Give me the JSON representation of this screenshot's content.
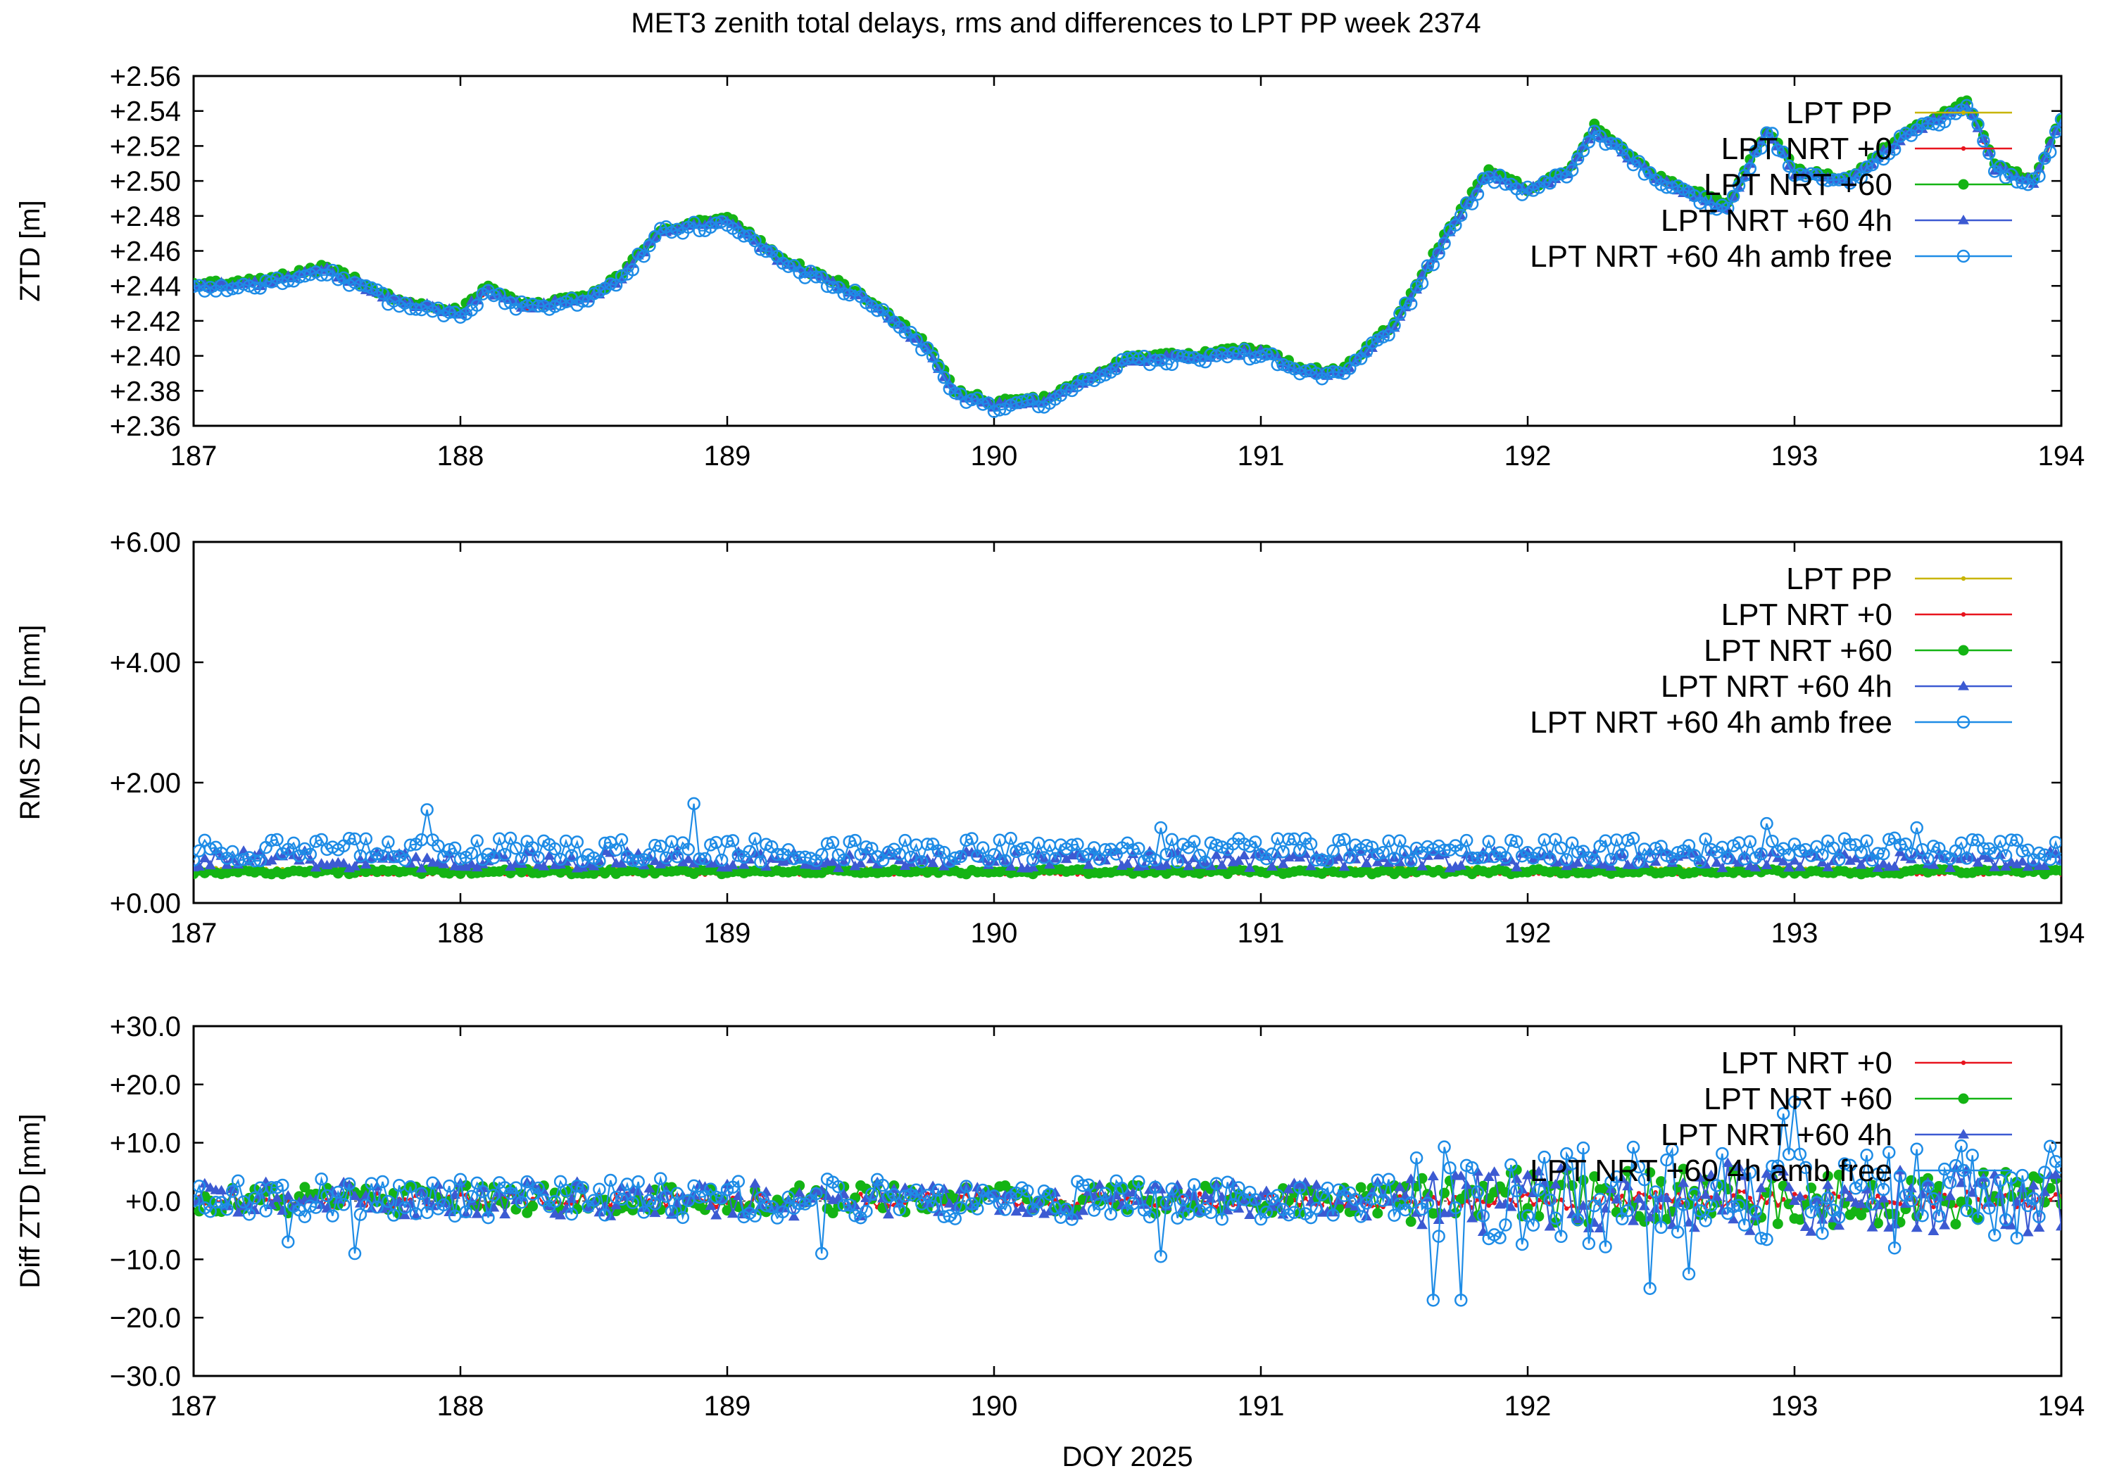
{
  "title": "MET3 zenith total delays, rms and differences to LPT PP week 2374",
  "colors": {
    "LPT PP": "#c8b400",
    "LPT NRT +0": "#e8141e",
    "LPT NRT +60": "#14b414",
    "LPT NRT +60 4h": "#3c5ad2",
    "LPT NRT +60 4h amb free": "#1e8ce6"
  },
  "chart_data": [
    {
      "type": "line",
      "panel": "ztd",
      "ylabel": "ZTD [m]",
      "xlabel": "",
      "xlim": [
        187,
        194
      ],
      "ylim": [
        2.36,
        2.56
      ],
      "xticks": [
        "187",
        "188",
        "189",
        "190",
        "191",
        "192",
        "193",
        "194"
      ],
      "yticks": [
        "+2.36",
        "+2.38",
        "+2.40",
        "+2.42",
        "+2.44",
        "+2.46",
        "+2.48",
        "+2.50",
        "+2.52",
        "+2.54",
        "+2.56"
      ],
      "legend": [
        "LPT PP",
        "LPT NRT +0",
        "LPT NRT +60",
        "LPT NRT +60 4h",
        "LPT NRT +60 4h amb free"
      ],
      "legend_position": "top-right",
      "base_curve": {
        "x": [
          187.0,
          187.25,
          187.5,
          187.75,
          188.0,
          188.1,
          188.25,
          188.5,
          188.6,
          188.75,
          189.0,
          189.2,
          189.5,
          189.75,
          189.85,
          190.0,
          190.2,
          190.5,
          190.75,
          191.0,
          191.15,
          191.3,
          191.5,
          191.7,
          191.85,
          192.0,
          192.15,
          192.25,
          192.5,
          192.75,
          192.9,
          193.0,
          193.2,
          193.4,
          193.65,
          193.75,
          193.9,
          194.0
        ],
        "y": [
          2.44,
          2.442,
          2.45,
          2.432,
          2.425,
          2.438,
          2.428,
          2.435,
          2.445,
          2.472,
          2.478,
          2.455,
          2.435,
          2.405,
          2.38,
          2.372,
          2.375,
          2.398,
          2.4,
          2.403,
          2.392,
          2.39,
          2.418,
          2.47,
          2.505,
          2.495,
          2.505,
          2.53,
          2.5,
          2.485,
          2.53,
          2.505,
          2.5,
          2.525,
          2.545,
          2.508,
          2.5,
          2.535
        ]
      },
      "series": [
        {
          "name": "LPT PP",
          "noise": 0.0012,
          "offset": 0.0
        },
        {
          "name": "LPT NRT +0",
          "noise": 0.0014,
          "offset": 0.0
        },
        {
          "name": "LPT NRT +60",
          "noise": 0.0018,
          "offset": 0.001
        },
        {
          "name": "LPT NRT +60 4h",
          "noise": 0.0018,
          "offset": -0.0005
        },
        {
          "name": "LPT NRT +60 4h amb free",
          "noise": 0.003,
          "offset": -0.0015
        }
      ]
    },
    {
      "type": "line",
      "panel": "rms",
      "ylabel": "RMS ZTD [mm]",
      "xlabel": "",
      "xlim": [
        187,
        194
      ],
      "ylim": [
        0,
        6
      ],
      "xticks": [
        "187",
        "188",
        "189",
        "190",
        "191",
        "192",
        "193",
        "194"
      ],
      "yticks": [
        "+0.00",
        "+2.00",
        "+4.00",
        "+6.00"
      ],
      "legend": [
        "LPT PP",
        "LPT NRT +0",
        "LPT NRT +60",
        "LPT NRT +60 4h",
        "LPT NRT +60 4h amb free"
      ],
      "legend_position": "top-right",
      "series": [
        {
          "name": "LPT PP",
          "mean": 0.55,
          "noise": 0.03
        },
        {
          "name": "LPT NRT +0",
          "mean": 0.5,
          "noise": 0.03
        },
        {
          "name": "LPT NRT +60",
          "mean": 0.52,
          "noise": 0.04
        },
        {
          "name": "LPT NRT +60 4h",
          "mean": 0.72,
          "noise": 0.15
        },
        {
          "name": "LPT NRT +60 4h amb free",
          "mean": 0.88,
          "noise": 0.2,
          "spikes": [
            [
              187.87,
              1.55
            ],
            [
              188.87,
              1.65
            ],
            [
              190.62,
              1.25
            ],
            [
              192.9,
              1.32
            ],
            [
              193.45,
              1.25
            ]
          ]
        }
      ]
    },
    {
      "type": "line",
      "panel": "diff",
      "ylabel": "Diff ZTD [mm]",
      "xlabel": "DOY 2025",
      "xlim": [
        187,
        194
      ],
      "ylim": [
        -30,
        30
      ],
      "xticks": [
        "187",
        "188",
        "189",
        "190",
        "191",
        "192",
        "193",
        "194"
      ],
      "yticks": [
        "−30.0",
        "−20.0",
        "−10.0",
        "+0.0",
        "+10.0",
        "+20.0",
        "+30.0"
      ],
      "legend": [
        "LPT NRT +0",
        "LPT NRT +60",
        "LPT NRT +60 4h",
        "LPT NRT +60 4h amb free"
      ],
      "legend_position": "top-right",
      "zero_line": true,
      "series": [
        {
          "name": "LPT NRT +0",
          "noise": 1.2,
          "late_noise": 1.5
        },
        {
          "name": "LPT NRT +60",
          "noise": 2.5,
          "late_noise": 5.0
        },
        {
          "name": "LPT NRT +60 4h",
          "noise": 3.0,
          "late_noise": 6.0
        },
        {
          "name": "LPT NRT +60 4h amb free",
          "noise": 3.5,
          "late_noise": 9.0,
          "dips": [
            [
              187.35,
              -7
            ],
            [
              187.6,
              -9
            ],
            [
              189.35,
              -9
            ],
            [
              190.62,
              -9.5
            ],
            [
              191.65,
              -17
            ],
            [
              191.75,
              -17
            ],
            [
              192.45,
              -15
            ],
            [
              192.6,
              -12.5
            ],
            [
              192.95,
              15
            ],
            [
              193.0,
              17
            ]
          ]
        }
      ]
    }
  ]
}
